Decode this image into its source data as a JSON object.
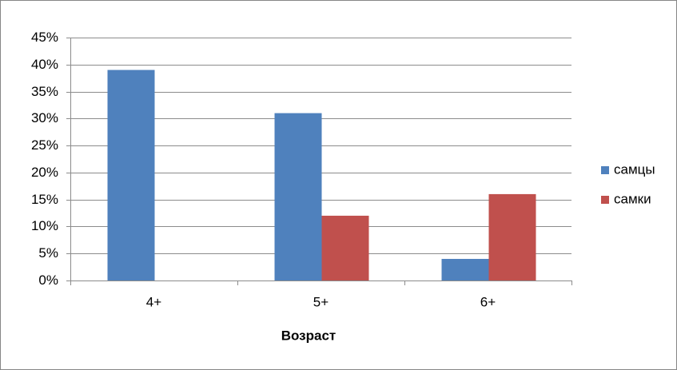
{
  "chart_data": {
    "type": "bar",
    "x_label": "Возраст",
    "categories": [
      "4+",
      "5+",
      "6+"
    ],
    "series": [
      {
        "name": "самцы",
        "color": "#4f81bd",
        "values": [
          39,
          31,
          4
        ]
      },
      {
        "name": "самки",
        "color": "#c0504d",
        "values": [
          0,
          12,
          16
        ]
      }
    ],
    "ylim": [
      0,
      45
    ],
    "yticks": [
      {
        "value": 0,
        "label": "0%"
      },
      {
        "value": 5,
        "label": "5%"
      },
      {
        "value": 10,
        "label": "10%"
      },
      {
        "value": 15,
        "label": "15%"
      },
      {
        "value": 20,
        "label": "20%"
      },
      {
        "value": 25,
        "label": "25%"
      },
      {
        "value": 30,
        "label": "30%"
      },
      {
        "value": 35,
        "label": "35%"
      },
      {
        "value": 40,
        "label": "40%"
      },
      {
        "value": 45,
        "label": "45%"
      }
    ],
    "grid": true,
    "legend": "right"
  }
}
